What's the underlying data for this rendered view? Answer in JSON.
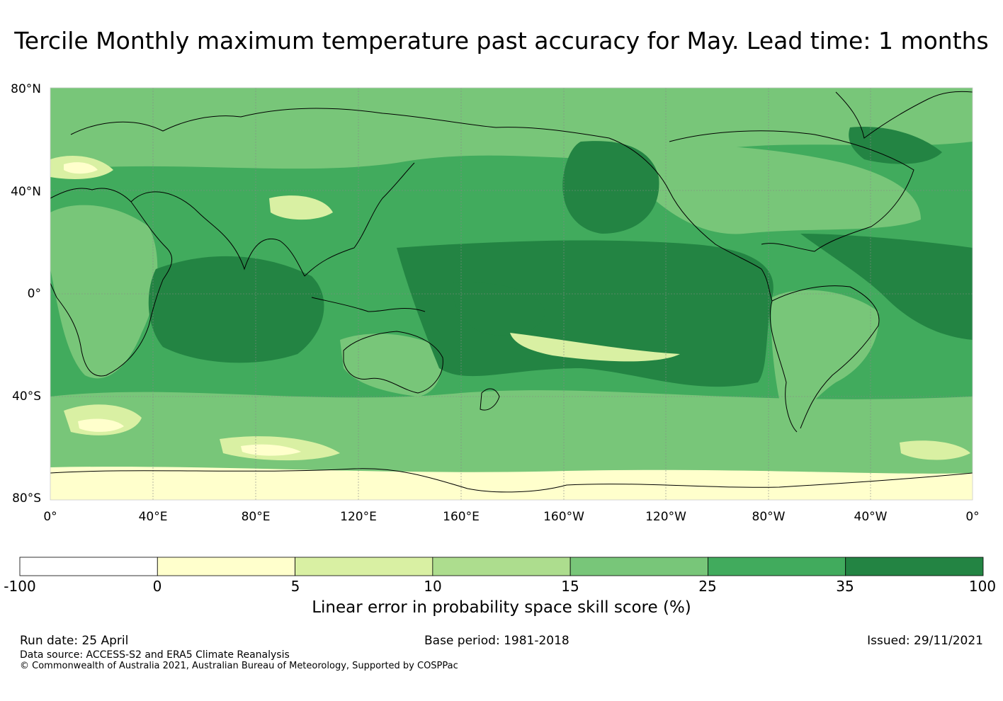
{
  "title": "Tercile Monthly maximum temperature past accuracy for May. Lead time: 1 months",
  "map": {
    "lat_labels": [
      "80°N",
      "40°N",
      "0°",
      "40°S",
      "80°S"
    ],
    "lon_labels": [
      "0°",
      "40°E",
      "80°E",
      "120°E",
      "160°E",
      "160°W",
      "120°W",
      "80°W",
      "40°W",
      "0°"
    ],
    "dominant_field_color": "#238b45",
    "coastline_color": "#000000",
    "gridline_color": "#888888"
  },
  "legend": {
    "ticks": [
      "-100",
      "0",
      "5",
      "10",
      "15",
      "25",
      "35",
      "100"
    ],
    "colors": [
      "#ffffff",
      "#ffffcc",
      "#d9f0a3",
      "#addd8e",
      "#78c679",
      "#41ab5d",
      "#238443"
    ],
    "label": "Linear error in probability space skill score (%)"
  },
  "footer": {
    "run_date": "Run date: 25 April",
    "base_period": "Base period: 1981-2018",
    "issued": "Issued: 29/11/2021",
    "data_source": "Data source: ACCESS-S2 and ERA5 Climate Reanalysis",
    "copyright": "© Commonwealth of Australia 2021, Australian Bureau of Meteorology, Supported by COSPPac"
  }
}
